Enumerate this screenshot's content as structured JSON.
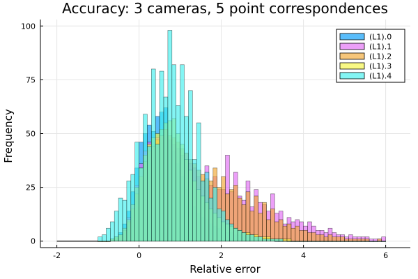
{
  "chart_data": {
    "type": "bar",
    "title": "Accuracy: 3 cameras, 5 point correspondences",
    "xlabel": "Relative error",
    "ylabel": "Frequency",
    "xlim": [
      -2.4,
      6.6
    ],
    "ylim": [
      -3,
      103
    ],
    "xticks": [
      -2,
      0,
      2,
      4,
      6
    ],
    "yticks": [
      0,
      25,
      50,
      75,
      100
    ],
    "grid": true,
    "legend_position": "top-right",
    "bin_width": 0.1,
    "bin_start": -1.0,
    "series": [
      {
        "name": "(L1).0",
        "color": "#009af9",
        "values": [
          0,
          0,
          0,
          1,
          2,
          4,
          8,
          14,
          23,
          34,
          46,
          50,
          54,
          51,
          58,
          60,
          62,
          47,
          42,
          36,
          30,
          24,
          19,
          16,
          13,
          11,
          10,
          8,
          7,
          6,
          5,
          4,
          4,
          3,
          3,
          2,
          2,
          2,
          1,
          1,
          1,
          1,
          1,
          0,
          0,
          1,
          0,
          0,
          0,
          0,
          0,
          0,
          0,
          0,
          0,
          0,
          0,
          0,
          0,
          0,
          0,
          0,
          0,
          0,
          0,
          0,
          0,
          0,
          0,
          0
        ]
      },
      {
        "name": "(L1).1",
        "color": "#e26cf5",
        "values": [
          0,
          0,
          0,
          1,
          1,
          3,
          6,
          11,
          17,
          26,
          36,
          42,
          46,
          44,
          48,
          49,
          52,
          47,
          45,
          43,
          40,
          38,
          36,
          34,
          30,
          28,
          35,
          26,
          30,
          24,
          24,
          40,
          23,
          32,
          21,
          19,
          28,
          16,
          24,
          18,
          17,
          14,
          22,
          13,
          14,
          8,
          11,
          9,
          10,
          9,
          7,
          9,
          7,
          5,
          5,
          4,
          6,
          4,
          3,
          3,
          2,
          3,
          2,
          2,
          2,
          2,
          1,
          1,
          1,
          2
        ]
      },
      {
        "name": "(L1).2",
        "color": "#f1a832",
        "values": [
          0,
          0,
          0,
          1,
          2,
          3,
          5,
          9,
          15,
          22,
          30,
          37,
          42,
          44,
          47,
          49,
          52,
          49,
          48,
          46,
          43,
          41,
          38,
          36,
          33,
          31,
          29,
          28,
          34,
          25,
          30,
          22,
          24,
          26,
          20,
          17,
          23,
          14,
          21,
          13,
          18,
          10,
          15,
          9,
          10,
          7,
          8,
          6,
          7,
          5,
          5,
          4,
          4,
          3,
          3,
          2,
          3,
          2,
          2,
          2,
          1,
          1,
          1,
          1,
          1,
          1,
          0,
          0,
          1,
          0
        ]
      },
      {
        "name": "(L1).3",
        "color": "#f5f542",
        "values": [
          0,
          0,
          0,
          1,
          2,
          3,
          6,
          10,
          17,
          25,
          34,
          40,
          45,
          48,
          50,
          52,
          55,
          56,
          57,
          50,
          45,
          38,
          33,
          28,
          24,
          21,
          18,
          15,
          13,
          11,
          9,
          8,
          7,
          6,
          5,
          4,
          4,
          3,
          3,
          2,
          2,
          2,
          1,
          1,
          1,
          1,
          1,
          0,
          0,
          0,
          0,
          0,
          0,
          0,
          0,
          0,
          0,
          0,
          0,
          0,
          0,
          0,
          0,
          0,
          0,
          0,
          0,
          0,
          0,
          0
        ]
      },
      {
        "name": "(L1).4",
        "color": "#40f0ee",
        "values": [
          2,
          3,
          6,
          9,
          14,
          20,
          19,
          28,
          31,
          46,
          34,
          59,
          44,
          80,
          45,
          79,
          67,
          98,
          82,
          63,
          82,
          58,
          70,
          38,
          55,
          28,
          32,
          20,
          25,
          15,
          14,
          10,
          8,
          6,
          5,
          4,
          3,
          3,
          2,
          2,
          1,
          1,
          1,
          1,
          1,
          0,
          0,
          0,
          0,
          0,
          0,
          0,
          0,
          0,
          0,
          0,
          0,
          0,
          0,
          0,
          0,
          0,
          0,
          0,
          0,
          0,
          0,
          0,
          0,
          0
        ]
      }
    ]
  }
}
